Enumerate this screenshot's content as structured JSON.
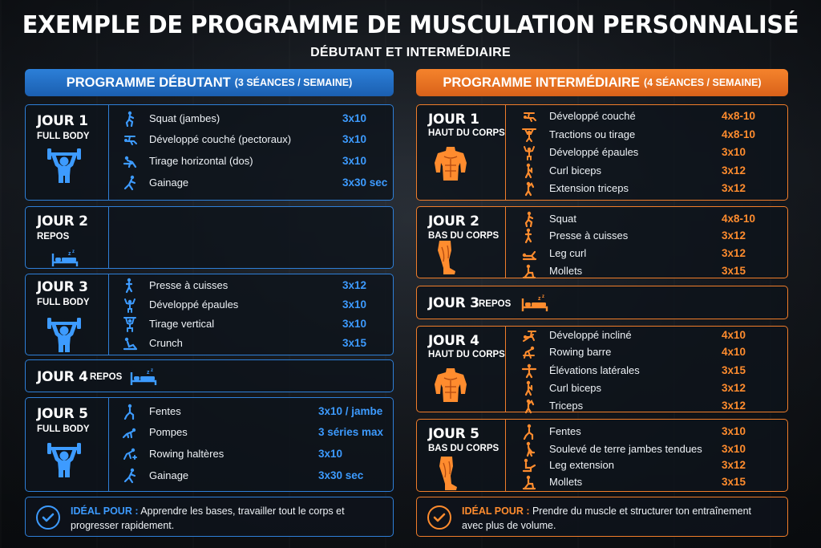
{
  "title": "EXEMPLE DE PROGRAMME DE MUSCULATION PERSONNALISÉ",
  "subtitle": "DÉBUTANT ET INTERMÉDIAIRE",
  "colors": {
    "blue": "#2e7fd8",
    "orange": "#f07d2a"
  },
  "beginner": {
    "banner_main": "PROGRAMME DÉBUTANT",
    "banner_small": "(3 SÉANCES / SEMAINE)",
    "days": [
      {
        "day": "JOUR 1",
        "label": "FULL BODY",
        "icon": "dumbbell-person-icon",
        "exercises": [
          {
            "name": "Squat (jambes)",
            "reps": "3x10",
            "icon": "squat-icon"
          },
          {
            "name": "Développé couché (pectoraux)",
            "reps": "3x10",
            "icon": "bench-press-icon"
          },
          {
            "name": "Tirage horizontal (dos)",
            "reps": "3x10",
            "icon": "row-icon"
          },
          {
            "name": "Gainage",
            "reps": "3x30 sec",
            "icon": "plank-icon"
          }
        ]
      },
      {
        "day": "JOUR 2",
        "label": "REPOS",
        "icon": "bed-icon",
        "exercises": []
      },
      {
        "day": "JOUR 3",
        "label": "FULL BODY",
        "icon": "dumbbell-person-icon",
        "exercises": [
          {
            "name": "Presse à cuisses",
            "reps": "3x12",
            "icon": "leg-press-icon"
          },
          {
            "name": "Développé épaules",
            "reps": "3x10",
            "icon": "shoulder-press-icon"
          },
          {
            "name": "Tirage vertical",
            "reps": "3x10",
            "icon": "pulldown-icon"
          },
          {
            "name": "Crunch",
            "reps": "3x15",
            "icon": "crunch-icon"
          }
        ]
      },
      {
        "day": "JOUR 4",
        "label": "REPOS",
        "icon": "bed-icon",
        "exercises": []
      },
      {
        "day": "JOUR 5",
        "label": "FULL BODY",
        "icon": "dumbbell-person-icon",
        "exercises": [
          {
            "name": "Fentes",
            "reps": "3x10 / jambe",
            "icon": "lunge-icon"
          },
          {
            "name": "Pompes",
            "reps": "3 séries max",
            "icon": "pushup-icon"
          },
          {
            "name": "Rowing haltères",
            "reps": "3x10",
            "icon": "dumbbell-row-icon"
          },
          {
            "name": "Gainage",
            "reps": "3x30 sec",
            "icon": "plank-icon"
          }
        ]
      }
    ],
    "ideal_label": "IDÉAL POUR :",
    "ideal_text": " Apprendre les bases, travailler tout le corps et progresser rapidement."
  },
  "intermediate": {
    "banner_main": "PROGRAMME INTERMÉDIAIRE",
    "banner_small": "(4 SÉANCES / SEMAINE)",
    "days": [
      {
        "day": "JOUR 1",
        "label": "HAUT DU CORPS",
        "icon": "torso-icon",
        "exercises": [
          {
            "name": "Développé couché",
            "reps": "4x8-10",
            "icon": "bench-press-icon"
          },
          {
            "name": "Tractions ou tirage",
            "reps": "4x8-10",
            "icon": "pullup-icon"
          },
          {
            "name": "Développé épaules",
            "reps": "3x10",
            "icon": "shoulder-press-icon"
          },
          {
            "name": "Curl biceps",
            "reps": "3x12",
            "icon": "curl-icon"
          },
          {
            "name": "Extension triceps",
            "reps": "3x12",
            "icon": "triceps-icon"
          }
        ]
      },
      {
        "day": "JOUR 2",
        "label": "BAS DU CORPS",
        "icon": "leg-icon",
        "exercises": [
          {
            "name": "Squat",
            "reps": "4x8-10",
            "icon": "squat-icon"
          },
          {
            "name": "Presse à cuisses",
            "reps": "3x12",
            "icon": "leg-press-icon"
          },
          {
            "name": "Leg curl",
            "reps": "3x12",
            "icon": "leg-curl-icon"
          },
          {
            "name": "Mollets",
            "reps": "3x15",
            "icon": "calf-raise-icon"
          }
        ]
      },
      {
        "day": "JOUR 3",
        "label": "REPOS",
        "icon": "bed-icon",
        "exercises": []
      },
      {
        "day": "JOUR 4",
        "label": "HAUT DU CORPS",
        "icon": "torso-icon",
        "exercises": [
          {
            "name": "Développé incliné",
            "reps": "4x10",
            "icon": "incline-press-icon"
          },
          {
            "name": "Rowing barre",
            "reps": "4x10",
            "icon": "barbell-row-icon"
          },
          {
            "name": "Élévations latérales",
            "reps": "3x15",
            "icon": "lateral-raise-icon"
          },
          {
            "name": "Curl biceps",
            "reps": "3x12",
            "icon": "curl-icon"
          },
          {
            "name": "Triceps",
            "reps": "3x12",
            "icon": "triceps-icon"
          }
        ]
      },
      {
        "day": "JOUR 5",
        "label": "BAS DU CORPS",
        "icon": "leg-icon",
        "exercises": [
          {
            "name": "Fentes",
            "reps": "3x10",
            "icon": "lunge-icon"
          },
          {
            "name": "Soulevé de terre jambes tendues",
            "reps": "3x10",
            "icon": "deadlift-icon"
          },
          {
            "name": "Leg extension",
            "reps": "3x12",
            "icon": "leg-extension-icon"
          },
          {
            "name": "Mollets",
            "reps": "3x15",
            "icon": "calf-raise-icon"
          }
        ]
      }
    ],
    "ideal_label": "IDÉAL POUR :",
    "ideal_text": " Prendre du muscle et structurer ton entraînement avec plus de volume."
  }
}
